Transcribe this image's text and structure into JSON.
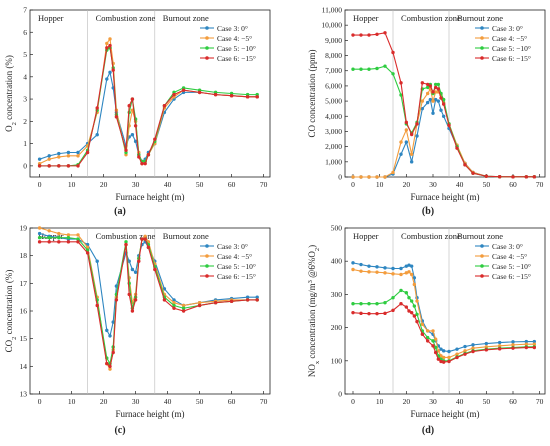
{
  "figure": {
    "panel_labels": [
      "(a)",
      "(b)",
      "(c)",
      "(d)"
    ]
  },
  "chart_data": [
    {
      "type": "line",
      "panel": "(a)",
      "xlabel": "Furnace height (m)",
      "ylabel": "O₂ concentration (%)",
      "xlim": [
        -3,
        72
      ],
      "ylim": [
        -0.5,
        7
      ],
      "xticks": [
        0,
        10,
        20,
        30,
        40,
        50,
        60,
        70
      ],
      "yticks": [
        0,
        1,
        2,
        3,
        4,
        5,
        6,
        7
      ],
      "legend_position": "top-right",
      "zones": [
        "Hopper",
        "Combustion zone",
        "Burnout zone"
      ],
      "zone_boundaries": [
        15,
        36
      ],
      "x": [
        0,
        3,
        6,
        9,
        12,
        15,
        18,
        21,
        22,
        23,
        24,
        27,
        28,
        29,
        30,
        31,
        32,
        33,
        34,
        36,
        39,
        42,
        45,
        50,
        55,
        60,
        65,
        68
      ],
      "series": [
        {
          "name": "Case 3: 0°",
          "color": "#2e86c1",
          "marker": "circle",
          "values": [
            0.3,
            0.45,
            0.55,
            0.6,
            0.6,
            1.0,
            1.4,
            3.9,
            4.2,
            3.5,
            2.4,
            0.9,
            1.3,
            1.4,
            1.1,
            0.5,
            0.2,
            0.3,
            0.6,
            1.0,
            2.4,
            3.0,
            3.3,
            3.3,
            3.2,
            3.15,
            3.1,
            3.1
          ]
        },
        {
          "name": "Case 4: −5°",
          "color": "#f39c3c",
          "marker": "circle",
          "values": [
            0.1,
            0.3,
            0.4,
            0.45,
            0.45,
            0.9,
            2.4,
            5.5,
            5.7,
            4.6,
            2.5,
            0.5,
            1.8,
            2.5,
            2.0,
            0.6,
            0.1,
            0.2,
            0.5,
            1.0,
            2.6,
            3.1,
            3.4,
            3.3,
            3.2,
            3.15,
            3.1,
            3.1
          ]
        },
        {
          "name": "Case 5: −10°",
          "color": "#2ecc40",
          "marker": "circle",
          "values": [
            0.0,
            0.0,
            0.0,
            0.0,
            0.05,
            0.7,
            2.5,
            5.2,
            5.3,
            4.4,
            2.3,
            0.6,
            2.4,
            3.0,
            2.1,
            0.5,
            0.2,
            0.2,
            0.5,
            1.1,
            2.7,
            3.3,
            3.5,
            3.4,
            3.3,
            3.25,
            3.2,
            3.2
          ]
        },
        {
          "name": "Case 6: −15°",
          "color": "#d92b2b",
          "marker": "circle",
          "values": [
            0.0,
            0.0,
            0.0,
            0.0,
            0.0,
            0.6,
            2.6,
            5.3,
            5.4,
            4.3,
            2.2,
            0.7,
            2.7,
            3.0,
            1.8,
            0.4,
            0.1,
            0.1,
            0.5,
            1.2,
            2.7,
            3.2,
            3.4,
            3.3,
            3.2,
            3.15,
            3.1,
            3.1
          ]
        }
      ]
    },
    {
      "type": "line",
      "panel": "(b)",
      "xlabel": "Furnace height (m)",
      "ylabel": "CO concentration (ppm)",
      "xlim": [
        -3,
        72
      ],
      "ylim": [
        0,
        11000
      ],
      "xticks": [
        0,
        10,
        20,
        30,
        40,
        50,
        60,
        70
      ],
      "yticks": [
        0,
        1000,
        2000,
        3000,
        4000,
        5000,
        6000,
        7000,
        8000,
        9000,
        10000,
        11000
      ],
      "ytick_labels": [
        "0",
        "1,000",
        "2,000",
        "3,000",
        "4,000",
        "5,000",
        "6,000",
        "7,000",
        "8,000",
        "9,000",
        "10,000",
        "11,000"
      ],
      "legend_position": "top-right",
      "zones": [
        "Hopper",
        "Combustion zone",
        "Burnout zone"
      ],
      "zone_boundaries": [
        15,
        36
      ],
      "x": [
        0,
        3,
        6,
        9,
        12,
        15,
        18,
        20,
        22,
        24,
        26,
        28,
        29,
        30,
        31,
        32,
        33,
        34,
        36,
        39,
        42,
        45,
        50,
        55,
        60,
        65,
        68
      ],
      "series": [
        {
          "name": "Case 3: 0°",
          "color": "#2e86c1",
          "marker": "circle",
          "values": [
            0,
            0,
            0,
            0,
            0,
            200,
            1500,
            2300,
            1000,
            2700,
            4500,
            4900,
            5100,
            4200,
            5100,
            5000,
            4400,
            4000,
            3200,
            2000,
            900,
            300,
            50,
            20,
            10,
            10,
            10
          ]
        },
        {
          "name": "Case 4: −5°",
          "color": "#f39c3c",
          "marker": "circle",
          "values": [
            0,
            0,
            0,
            0,
            0,
            300,
            2300,
            3100,
            1500,
            3500,
            5000,
            5500,
            5800,
            5000,
            5600,
            5600,
            5400,
            4900,
            3500,
            2100,
            900,
            300,
            50,
            20,
            10,
            10,
            10
          ]
        },
        {
          "name": "Case 5: −10°",
          "color": "#2ecc40",
          "marker": "circle",
          "values": [
            7100,
            7100,
            7100,
            7150,
            7300,
            6800,
            5400,
            3500,
            2900,
            3600,
            5800,
            5900,
            6100,
            5500,
            6100,
            6100,
            5500,
            5100,
            3500,
            2000,
            800,
            250,
            50,
            20,
            10,
            10,
            10
          ]
        },
        {
          "name": "Case 6: −15°",
          "color": "#d92b2b",
          "marker": "circle",
          "values": [
            9350,
            9350,
            9350,
            9400,
            9500,
            8200,
            6200,
            3600,
            2800,
            3500,
            6200,
            6100,
            6000,
            5600,
            5900,
            5800,
            5200,
            4800,
            3400,
            1900,
            800,
            250,
            50,
            20,
            10,
            10,
            10
          ]
        }
      ]
    },
    {
      "type": "line",
      "panel": "(c)",
      "xlabel": "Furnace height (m)",
      "ylabel": "CO₂ concentration (%)",
      "xlim": [
        -3,
        72
      ],
      "ylim": [
        13,
        19
      ],
      "xticks": [
        0,
        10,
        20,
        30,
        40,
        50,
        60,
        70
      ],
      "yticks": [
        13,
        14,
        15,
        16,
        17,
        18,
        19
      ],
      "legend_position": "top-right",
      "zones": [
        "Hopper",
        "Combustion zone",
        "Burnout zone"
      ],
      "zone_boundaries": [
        15,
        36
      ],
      "x": [
        0,
        3,
        6,
        9,
        12,
        15,
        18,
        21,
        22,
        23,
        24,
        27,
        28,
        29,
        30,
        31,
        32,
        33,
        34,
        36,
        39,
        42,
        45,
        50,
        55,
        60,
        65,
        68
      ],
      "series": [
        {
          "name": "Case 3: 0°",
          "color": "#2e86c1",
          "marker": "circle",
          "values": [
            18.8,
            18.7,
            18.65,
            18.6,
            18.6,
            18.4,
            17.8,
            15.3,
            15.1,
            15.6,
            16.9,
            18.1,
            17.8,
            17.5,
            17.4,
            18.0,
            18.4,
            18.5,
            18.3,
            17.8,
            16.8,
            16.4,
            16.2,
            16.3,
            16.4,
            16.45,
            16.5,
            16.5
          ]
        },
        {
          "name": "Case 4: −5°",
          "color": "#f39c3c",
          "marker": "circle",
          "values": [
            19.0,
            18.9,
            18.8,
            18.75,
            18.75,
            18.3,
            16.5,
            14.1,
            13.9,
            14.6,
            16.5,
            18.4,
            17.2,
            16.3,
            16.6,
            17.9,
            18.6,
            18.7,
            18.5,
            17.7,
            16.6,
            16.3,
            16.2,
            16.3,
            16.35,
            16.4,
            16.4,
            16.4
          ]
        },
        {
          "name": "Case 5: −10°",
          "color": "#2ecc40",
          "marker": "circle",
          "values": [
            18.65,
            18.65,
            18.65,
            18.65,
            18.6,
            18.2,
            16.4,
            14.3,
            14.1,
            14.7,
            16.6,
            18.5,
            17.0,
            16.1,
            16.5,
            17.9,
            18.6,
            18.6,
            18.4,
            17.6,
            16.5,
            16.2,
            16.1,
            16.2,
            16.3,
            16.35,
            16.4,
            16.4
          ]
        },
        {
          "name": "Case 6: −15°",
          "color": "#d92b2b",
          "marker": "circle",
          "values": [
            18.5,
            18.5,
            18.5,
            18.5,
            18.5,
            18.1,
            16.2,
            14.1,
            14.0,
            14.5,
            16.4,
            18.4,
            16.6,
            16.0,
            16.4,
            17.8,
            18.6,
            18.6,
            18.3,
            17.5,
            16.4,
            16.1,
            16.0,
            16.2,
            16.3,
            16.35,
            16.4,
            16.4
          ]
        }
      ]
    },
    {
      "type": "line",
      "panel": "(d)",
      "xlabel": "Furnace height (m)",
      "ylabel": "NOₓ concentration (mg/m³ @6%O₂)",
      "xlim": [
        -3,
        72
      ],
      "ylim": [
        0,
        500
      ],
      "xticks": [
        0,
        10,
        20,
        30,
        40,
        50,
        60,
        70
      ],
      "yticks": [
        0,
        100,
        200,
        300,
        400,
        500
      ],
      "legend_position": "top-right",
      "zones": [
        "Hopper",
        "Combustion zone",
        "Burnout zone"
      ],
      "zone_boundaries": [
        15,
        36
      ],
      "x": [
        0,
        3,
        6,
        9,
        12,
        15,
        18,
        20,
        21,
        22,
        23,
        24,
        26,
        28,
        30,
        31,
        32,
        33,
        34,
        36,
        39,
        42,
        45,
        50,
        55,
        60,
        65,
        68
      ],
      "series": [
        {
          "name": "Case 3: 0°",
          "color": "#2e86c1",
          "marker": "circle",
          "values": [
            395,
            390,
            385,
            383,
            380,
            378,
            378,
            385,
            388,
            385,
            350,
            290,
            220,
            190,
            180,
            160,
            145,
            135,
            130,
            128,
            135,
            143,
            148,
            152,
            155,
            157,
            158,
            158
          ]
        },
        {
          "name": "Case 4: −5°",
          "color": "#f39c3c",
          "marker": "circle",
          "values": [
            375,
            370,
            368,
            367,
            365,
            362,
            360,
            365,
            368,
            360,
            330,
            280,
            210,
            190,
            190,
            165,
            130,
            115,
            110,
            110,
            120,
            130,
            138,
            142,
            145,
            148,
            150,
            150
          ]
        },
        {
          "name": "Case 5: −10°",
          "color": "#2ecc40",
          "marker": "circle",
          "values": [
            272,
            272,
            272,
            272,
            275,
            290,
            312,
            305,
            290,
            280,
            265,
            240,
            190,
            170,
            160,
            140,
            115,
            105,
            100,
            100,
            112,
            122,
            130,
            135,
            138,
            140,
            142,
            142
          ]
        },
        {
          "name": "Case 6: −15°",
          "color": "#d92b2b",
          "marker": "circle",
          "values": [
            245,
            243,
            242,
            242,
            243,
            252,
            272,
            262,
            250,
            245,
            235,
            218,
            180,
            160,
            145,
            125,
            105,
            98,
            96,
            98,
            110,
            120,
            128,
            133,
            136,
            138,
            140,
            140
          ]
        }
      ]
    }
  ]
}
